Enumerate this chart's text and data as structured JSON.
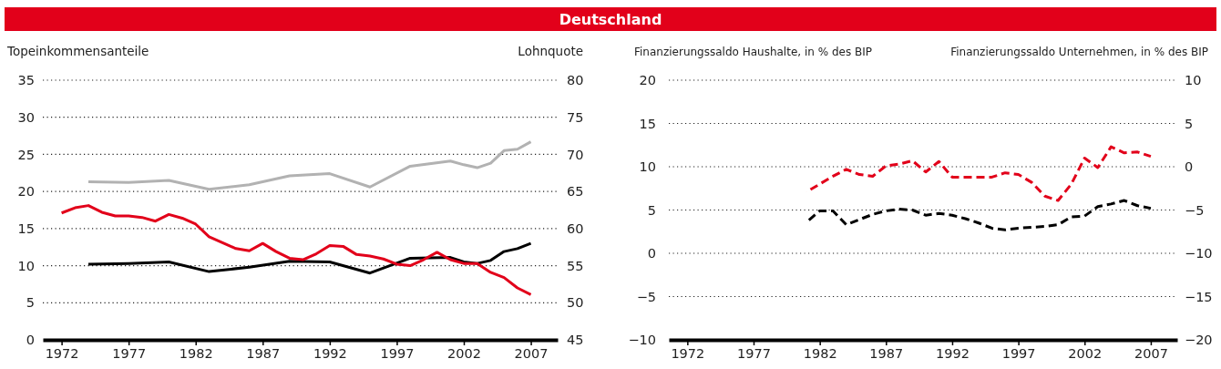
{
  "chart_data": [
    {
      "type": "line",
      "title": "Deutschland",
      "ylabel": "Topeinkommensanteile",
      "y2label": "Lohnquote",
      "xlim": [
        1970.6,
        2009
      ],
      "xticks": [
        1972,
        1977,
        1982,
        1987,
        1992,
        1997,
        2002,
        2007
      ],
      "ylim": [
        0,
        35
      ],
      "yticks": [
        0,
        5,
        10,
        15,
        20,
        25,
        30,
        35
      ],
      "y2lim": [
        45,
        80
      ],
      "y2ticks": [
        45,
        50,
        55,
        60,
        65,
        70,
        75,
        80
      ],
      "grid": "y",
      "line_style": "solid",
      "series": [
        {
          "color": "#b2b2b2",
          "x": [
            1974,
            1977,
            1980,
            1983,
            1986,
            1989,
            1992,
            1995,
            1998,
            2001,
            2002,
            2003,
            2004,
            2005,
            2006,
            2007
          ],
          "values": [
            21.3,
            21.2,
            21.5,
            20.3,
            20.9,
            22.1,
            22.4,
            20.6,
            23.4,
            24.1,
            23.6,
            23.2,
            23.8,
            25.5,
            25.7,
            26.7
          ]
        },
        {
          "color": "#000000",
          "x": [
            1974,
            1977,
            1980,
            1983,
            1986,
            1989,
            1992,
            1995,
            1998,
            2001,
            2002,
            2003,
            2004,
            2005,
            2006,
            2007
          ],
          "values": [
            10.2,
            10.3,
            10.5,
            9.2,
            9.8,
            10.6,
            10.5,
            9.0,
            11.0,
            11.1,
            10.5,
            10.3,
            10.7,
            11.9,
            12.3,
            13.0
          ]
        },
        {
          "color": "#e2001a",
          "axis": "y2",
          "x": [
            1972,
            1973,
            1974,
            1975,
            1976,
            1977,
            1978,
            1979,
            1980,
            1981,
            1982,
            1983,
            1984,
            1985,
            1986,
            1987,
            1988,
            1989,
            1990,
            1991,
            1992,
            1993,
            1994,
            1995,
            1996,
            1997,
            1998,
            1999,
            2000,
            2001,
            2002,
            2003,
            2004,
            2005,
            2006,
            2007
          ],
          "values": [
            62.1,
            62.8,
            63.1,
            62.2,
            61.7,
            61.7,
            61.5,
            61.0,
            61.9,
            61.4,
            60.6,
            58.9,
            58.1,
            57.3,
            57.0,
            58.0,
            56.9,
            56.0,
            55.8,
            56.6,
            57.7,
            57.6,
            56.5,
            56.3,
            55.9,
            55.2,
            55.0,
            55.8,
            56.8,
            55.8,
            55.3,
            55.3,
            54.1,
            53.4,
            52.0,
            51.1
          ]
        }
      ]
    },
    {
      "type": "line",
      "ylabel": "Finanzierungssaldo Haushalte, in % des BIP",
      "y2label": "Finanzierungssaldo Unternehmen, in % des BIP",
      "xlim": [
        1970.6,
        2009
      ],
      "xticks": [
        1972,
        1977,
        1982,
        1987,
        1992,
        1997,
        2002,
        2007
      ],
      "ylim": [
        -10,
        20
      ],
      "yticks": [
        {
          "value": -10,
          "label": "−10"
        },
        {
          "value": -5,
          "label": "−5"
        },
        0,
        5,
        10,
        15,
        20
      ],
      "y2lim": [
        -20,
        10
      ],
      "y2ticks": [
        {
          "value": -20,
          "label": "−20"
        },
        {
          "value": -15,
          "label": "−15"
        },
        {
          "value": -10,
          "label": "−10"
        },
        {
          "value": -5,
          "label": "−5"
        },
        0,
        5,
        10
      ],
      "grid": "y",
      "line_style": "dashed",
      "series": [
        {
          "color": "#000000",
          "x": [
            1981,
            1982,
            1983,
            1984,
            1985,
            1986,
            1987,
            1988,
            1989,
            1990,
            1991,
            1992,
            1993,
            1994,
            1995,
            1996,
            1997,
            1998,
            1999,
            2000,
            2001,
            2002,
            2003,
            2004,
            2005,
            2006,
            2007
          ],
          "values": [
            3.6,
            4.9,
            4.9,
            3.3,
            3.9,
            4.5,
            4.9,
            5.1,
            5.0,
            4.4,
            4.6,
            4.4,
            4.0,
            3.5,
            2.9,
            2.7,
            2.9,
            3.0,
            3.1,
            3.3,
            4.2,
            4.3,
            5.4,
            5.7,
            6.1,
            5.5,
            5.2
          ]
        },
        {
          "color": "#e2001a",
          "axis": "y2",
          "x": [
            1981,
            1982,
            1983,
            1984,
            1985,
            1986,
            1987,
            1988,
            1989,
            1990,
            1991,
            1992,
            1993,
            1994,
            1995,
            1996,
            1997,
            1998,
            1999,
            2000,
            2001,
            2002,
            2003,
            2004,
            2005,
            2006,
            2007
          ],
          "values": [
            -2.9,
            -2.0,
            -1.1,
            -0.3,
            -0.9,
            -1.1,
            0.1,
            0.3,
            0.7,
            -0.6,
            0.6,
            -1.2,
            -1.2,
            -1.2,
            -1.2,
            -0.7,
            -0.9,
            -1.8,
            -3.4,
            -3.9,
            -2.0,
            1.0,
            -0.1,
            2.3,
            1.6,
            1.7,
            1.2
          ]
        }
      ]
    }
  ]
}
